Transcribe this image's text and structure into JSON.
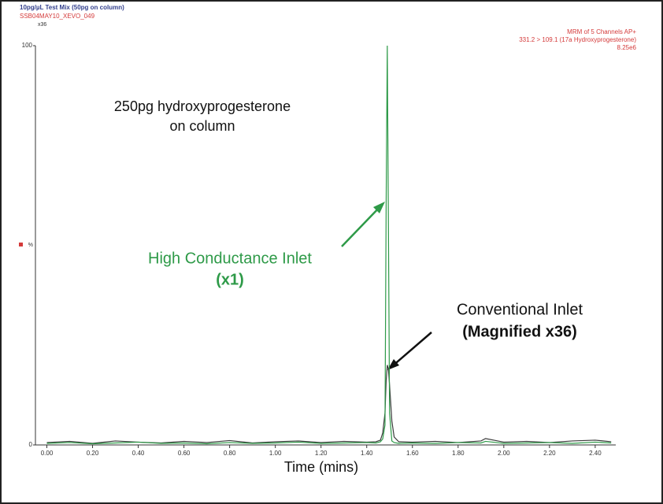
{
  "chart_data": {
    "type": "line",
    "title": "10pg/µL Test Mix (50pg on column)",
    "subtitle": "SSB04MAY10_XEVO_049",
    "magnification_label": "x36",
    "channel_info": [
      "MRM of 5 Channels AP+",
      "331.2 > 109.1 (17a Hydroxyprogesterone)",
      "8.25e6"
    ],
    "x_label": "Time (mins)",
    "y_label": "%",
    "annotations": [
      "250pg hydroxyprogesterone",
      "on column",
      "High Conductance Inlet",
      "(x1)",
      "Conventional Inlet",
      "(Magnified x36)"
    ],
    "x": [
      0,
      0.1,
      0.2,
      0.3,
      0.4,
      0.5,
      0.6,
      0.7,
      0.8,
      0.9,
      1.0,
      1.1,
      1.2,
      1.3,
      1.4,
      1.44,
      1.46,
      1.47,
      1.48,
      1.485,
      1.49,
      1.495,
      1.5,
      1.51,
      1.52,
      1.54,
      1.6,
      1.7,
      1.8,
      1.9,
      1.92,
      2.0,
      2.1,
      2.2,
      2.3,
      2.4,
      2.47
    ],
    "series": [
      {
        "name": "High Conductance Inlet",
        "color": "#2e9a48",
        "values": [
          0.4,
          0.6,
          0.3,
          0.5,
          0.7,
          0.4,
          0.5,
          0.3,
          0.6,
          0.4,
          0.5,
          0.7,
          0.4,
          0.5,
          0.6,
          0.5,
          0.8,
          1.5,
          5,
          60,
          100,
          55,
          8,
          1,
          0.6,
          0.4,
          0.5,
          0.4,
          0.6,
          0.5,
          0.9,
          0.4,
          0.5,
          0.6,
          0.4,
          0.7,
          0.5
        ]
      },
      {
        "name": "Conventional Inlet",
        "color": "#3a3a3a",
        "values": [
          0.6,
          0.9,
          0.4,
          1.0,
          0.7,
          0.5,
          0.9,
          0.6,
          1.1,
          0.5,
          0.8,
          1.0,
          0.6,
          0.9,
          0.7,
          0.8,
          1.2,
          3,
          8,
          16,
          20,
          19,
          15,
          6,
          2,
          0.8,
          0.7,
          0.9,
          0.6,
          1.0,
          1.6,
          0.7,
          0.9,
          0.6,
          1.0,
          1.2,
          0.8
        ]
      }
    ],
    "xlim": [
      -0.05,
      2.49
    ],
    "ylim": [
      0,
      100
    ],
    "yticks": [
      0,
      100
    ],
    "xticks": [
      {
        "value": 0,
        "label": "0.00"
      },
      {
        "value": 0.2,
        "label": "0.20"
      },
      {
        "value": 0.4,
        "label": "0.40"
      },
      {
        "value": 0.6,
        "label": "0.60"
      },
      {
        "value": 0.8,
        "label": "0.80"
      },
      {
        "value": 1.0,
        "label": "1.00"
      },
      {
        "value": 1.2,
        "label": "1.20"
      },
      {
        "value": 1.4,
        "label": "1.40"
      },
      {
        "value": 1.6,
        "label": "1.60"
      },
      {
        "value": 1.8,
        "label": "1.80"
      },
      {
        "value": 2.0,
        "label": "2.00"
      },
      {
        "value": 2.2,
        "label": "2.20"
      },
      {
        "value": 2.4,
        "label": "2.40"
      }
    ]
  }
}
